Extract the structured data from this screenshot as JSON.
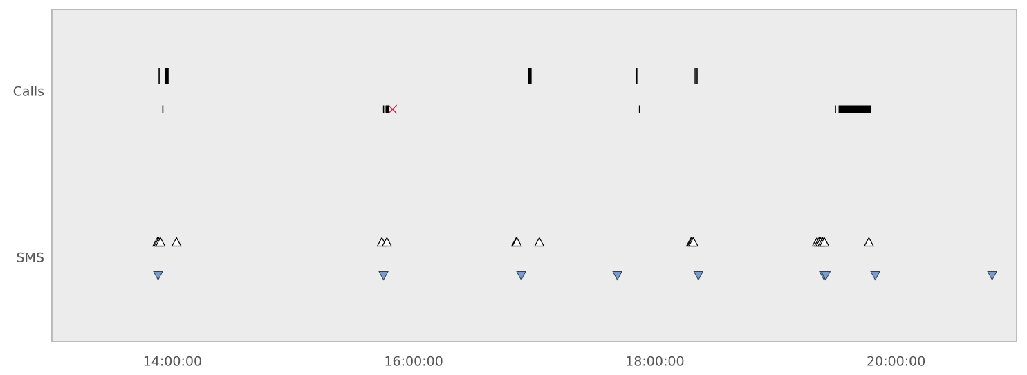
{
  "chart_data": {
    "type": "scatter",
    "title": "",
    "xlabel": "",
    "ylabel": "",
    "x_axis": {
      "scale": "time",
      "range": [
        "13:00:00",
        "21:00:00"
      ],
      "ticks": [
        "14:00:00",
        "16:00:00",
        "18:00:00",
        "20:00:00"
      ]
    },
    "y_axis": {
      "categories": [
        "Calls",
        "SMS"
      ]
    },
    "grid": false,
    "legend": "none",
    "colors": {
      "plot_background": "#ececec",
      "plot_border": "#bbbbbb",
      "mark": "#000000",
      "missed_call": "#c0264a",
      "received_sms_fill": "#7a9cc6",
      "sent_sms_fill": "#ffffff"
    },
    "series": [
      {
        "category": "Calls",
        "lane": "upper",
        "mark": "duration-bar",
        "intervals": [
          [
            "13:53:05",
            "13:53:30"
          ],
          [
            "13:56:10",
            "13:58:05"
          ],
          [
            "16:56:50",
            "16:58:40"
          ],
          [
            "17:50:45",
            "17:50:55"
          ],
          [
            "18:19:20",
            "18:19:25"
          ],
          [
            "18:20:05",
            "18:20:10"
          ],
          [
            "18:20:45",
            "18:20:50"
          ]
        ]
      },
      {
        "category": "Calls",
        "lane": "lower",
        "mark": "duration-bar",
        "intervals": [
          [
            "13:54:55",
            "13:55:05"
          ],
          [
            "15:44:45",
            "15:44:55"
          ],
          [
            "15:46:00",
            "15:47:35"
          ],
          [
            "17:52:05",
            "17:52:20"
          ],
          [
            "19:29:35",
            "19:29:50"
          ],
          [
            "19:31:25",
            "19:47:45"
          ]
        ]
      },
      {
        "category": "Calls",
        "lane": "lower",
        "mark": "x",
        "points": [
          "15:49:30"
        ]
      },
      {
        "category": "SMS",
        "lane": "upper",
        "mark": "triangle-up",
        "points": [
          "13:52:30",
          "13:53:10",
          "13:54:00",
          "14:02:00",
          "15:44:10",
          "15:46:40",
          "16:51:00",
          "16:51:20",
          "17:02:30",
          "18:18:00",
          "18:18:30",
          "18:19:10",
          "19:20:40",
          "19:21:40",
          "19:22:30",
          "19:23:30",
          "19:24:20",
          "19:46:30"
        ]
      },
      {
        "category": "SMS",
        "lane": "lower",
        "mark": "triangle-down",
        "points": [
          "13:52:50",
          "15:45:00",
          "16:53:30",
          "17:41:20",
          "18:21:40",
          "19:24:10",
          "19:25:00",
          "19:49:40",
          "20:47:50"
        ]
      }
    ]
  }
}
